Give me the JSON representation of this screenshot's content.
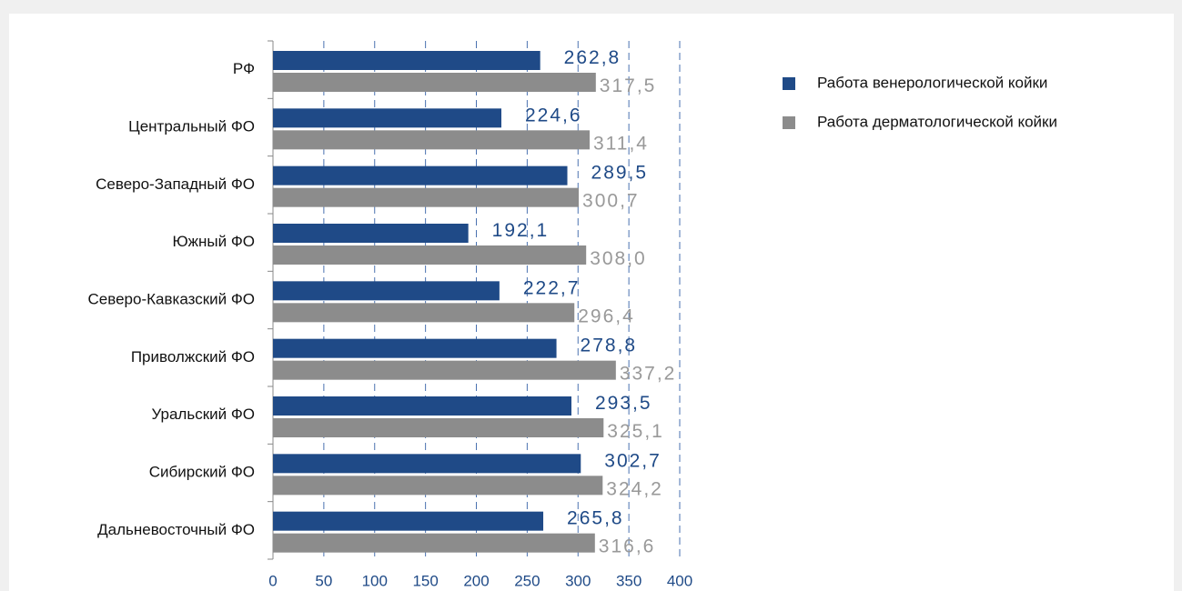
{
  "chart_data": {
    "type": "bar",
    "orientation": "horizontal",
    "categories": [
      "РФ",
      "Центральный ФО",
      "Северо-Западный ФО",
      "Южный ФО",
      "Северо-Кавказский ФО",
      "Приволжский ФО",
      "Уральский ФО",
      "Сибирский ФО",
      "Дальневосточный ФО"
    ],
    "series": [
      {
        "name": "Работа венерологической койки",
        "color": "#1f4a87",
        "values": [
          262.8,
          224.6,
          289.5,
          192.1,
          222.7,
          278.8,
          293.5,
          302.7,
          265.8
        ],
        "value_labels": [
          "262,8",
          "224,6",
          "289,5",
          "192,1",
          "222,7",
          "278,8",
          "293,5",
          "302,7",
          "265,8"
        ]
      },
      {
        "name": "Работа дерматологической койки",
        "color": "#8c8c8c",
        "values": [
          317.5,
          311.4,
          300.7,
          308.0,
          296.4,
          337.2,
          325.1,
          324.2,
          316.6
        ],
        "value_labels": [
          "317,5",
          "311,4",
          "300,7",
          "308,0",
          "296,4",
          "337,2",
          "325,1",
          "324,2",
          "316,6"
        ]
      }
    ],
    "xlim": [
      0,
      400
    ],
    "xticks": [
      0,
      50,
      100,
      150,
      200,
      250,
      300,
      350,
      400
    ],
    "grid": true,
    "legend": "top-right"
  }
}
